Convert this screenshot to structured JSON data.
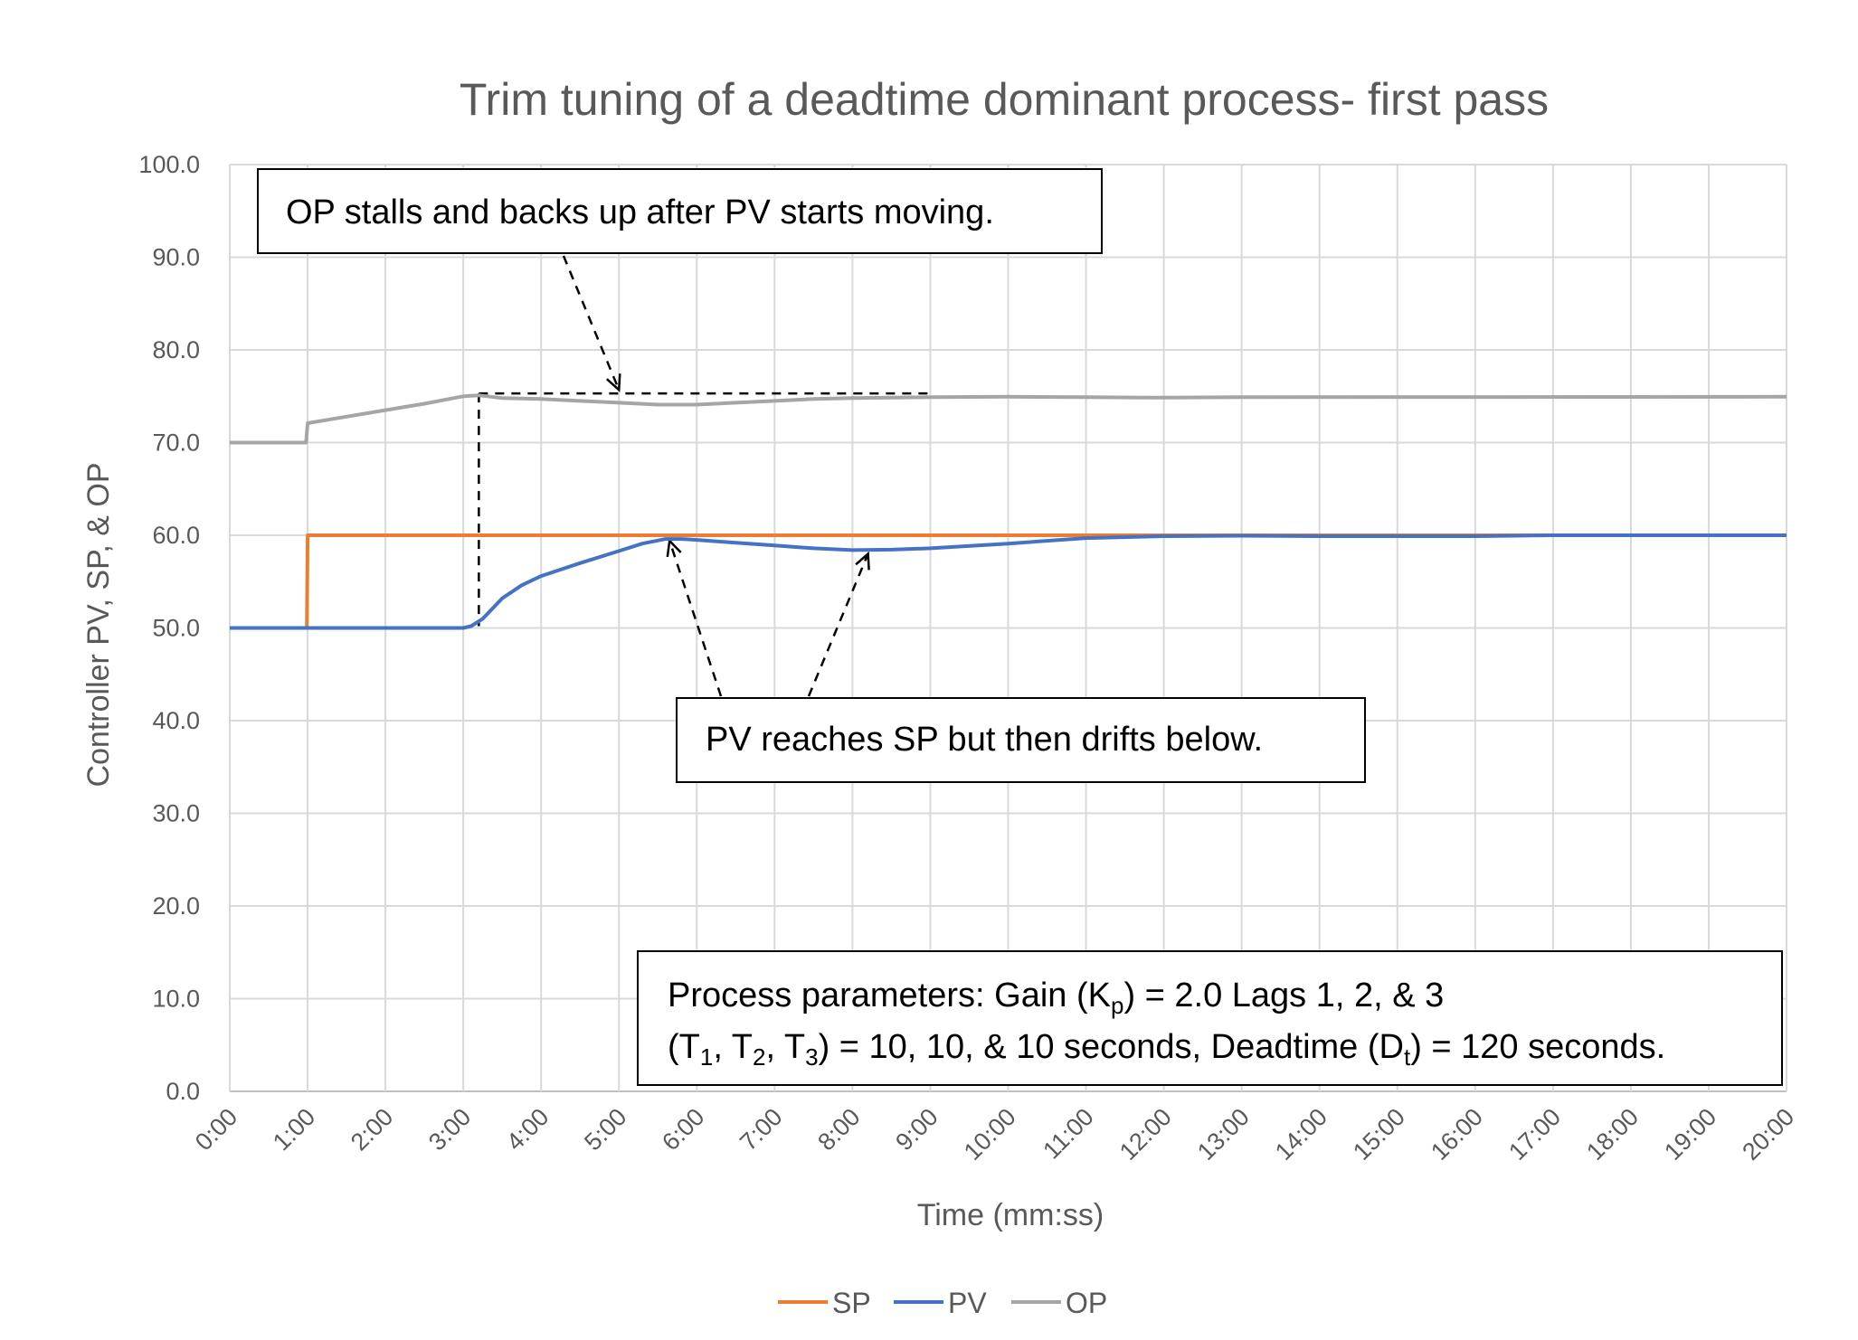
{
  "chart_data": {
    "type": "line",
    "title": "Trim tuning of a deadtime dominant process- first pass",
    "xlabel": "Time (mm:ss)",
    "ylabel": "Controller PV, SP, & OP",
    "xlim": [
      0,
      20
    ],
    "ylim": [
      0,
      100
    ],
    "x_unit": "minutes",
    "x_tick_labels": [
      "0:00",
      "1:00",
      "2:00",
      "3:00",
      "4:00",
      "5:00",
      "6:00",
      "7:00",
      "8:00",
      "9:00",
      "10:00",
      "11:00",
      "12:00",
      "13:00",
      "14:00",
      "15:00",
      "16:00",
      "17:00",
      "18:00",
      "19:00",
      "20:00"
    ],
    "y_tick_labels": [
      "0.0",
      "10.0",
      "20.0",
      "30.0",
      "40.0",
      "50.0",
      "60.0",
      "70.0",
      "80.0",
      "90.0",
      "100.0"
    ],
    "grid": true,
    "legend_position": "bottom-center",
    "series": [
      {
        "name": "SP",
        "color": "#ED7D31",
        "points": [
          [
            0,
            50
          ],
          [
            0.99,
            50
          ],
          [
            1.0,
            60
          ],
          [
            20,
            60
          ]
        ]
      },
      {
        "name": "PV",
        "color": "#4472C4",
        "points": [
          [
            0,
            50
          ],
          [
            3.0,
            50
          ],
          [
            3.1,
            50.2
          ],
          [
            3.25,
            51
          ],
          [
            3.5,
            53.2
          ],
          [
            3.75,
            54.6
          ],
          [
            4.0,
            55.6
          ],
          [
            4.5,
            57.0
          ],
          [
            5.0,
            58.3
          ],
          [
            5.3,
            59.1
          ],
          [
            5.6,
            59.6
          ],
          [
            5.8,
            59.6
          ],
          [
            6.0,
            59.5
          ],
          [
            6.5,
            59.2
          ],
          [
            7.0,
            58.9
          ],
          [
            7.5,
            58.6
          ],
          [
            8.0,
            58.4
          ],
          [
            8.5,
            58.45
          ],
          [
            9.0,
            58.6
          ],
          [
            10.0,
            59.1
          ],
          [
            11.0,
            59.7
          ],
          [
            12.0,
            59.9
          ],
          [
            13.0,
            59.95
          ],
          [
            14.0,
            59.9
          ],
          [
            16.0,
            59.9
          ],
          [
            17.0,
            60
          ],
          [
            20,
            60
          ]
        ]
      },
      {
        "name": "OP",
        "color": "#A5A5A5",
        "points": [
          [
            0,
            70
          ],
          [
            0.98,
            70
          ],
          [
            1.0,
            72.1
          ],
          [
            1.5,
            72.8
          ],
          [
            2.0,
            73.5
          ],
          [
            2.5,
            74.2
          ],
          [
            3.0,
            75.0
          ],
          [
            3.2,
            75.1
          ],
          [
            3.5,
            74.8
          ],
          [
            4.0,
            74.7
          ],
          [
            4.5,
            74.5
          ],
          [
            5.0,
            74.3
          ],
          [
            5.5,
            74.1
          ],
          [
            6.0,
            74.1
          ],
          [
            6.5,
            74.3
          ],
          [
            7.0,
            74.5
          ],
          [
            7.5,
            74.7
          ],
          [
            8.0,
            74.8
          ],
          [
            9.0,
            74.9
          ],
          [
            10.0,
            74.95
          ],
          [
            11.0,
            74.9
          ],
          [
            12.0,
            74.85
          ],
          [
            13.0,
            74.9
          ],
          [
            20,
            74.95
          ]
        ]
      }
    ],
    "annotations": [
      {
        "text": "OP stalls and backs up after PV starts moving."
      },
      {
        "text": "PV reaches SP but then drifts below."
      },
      {
        "line1_a": "Process parameters:  Gain (K",
        "line1_sub": "p",
        "line1_b": ") = 2.0 Lags 1, 2, & 3",
        "line2": [
          "(T",
          "1",
          ", T",
          "2",
          ", T",
          "3",
          ") = 10, 10, & 10 seconds, Deadtime (D",
          "t",
          ") = 120 seconds."
        ]
      }
    ]
  }
}
